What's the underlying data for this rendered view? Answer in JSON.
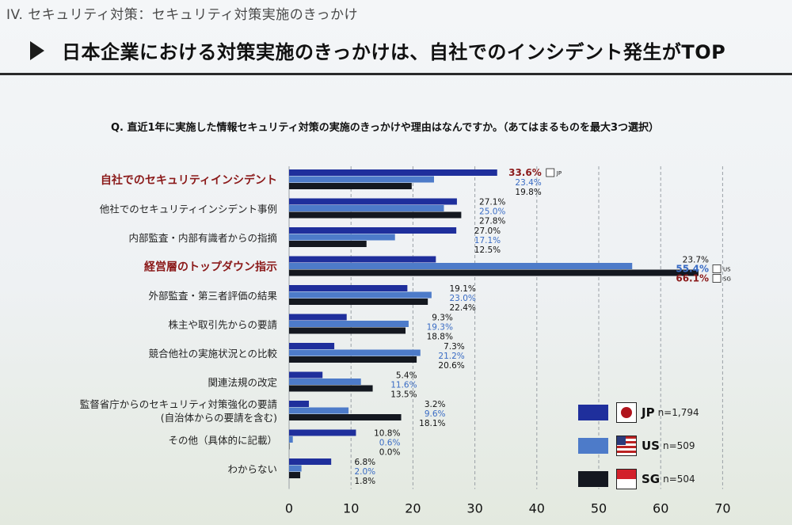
{
  "section_title": "IV. セキュリティ対策：セキュリティ対策実施のきっかけ",
  "headline": "日本企業における対策実施のきっかけは、自社でのインシデント発生がTOP",
  "question": "Q. 直近1年に実施した情報セキュリティ対策の実施のきっかけや理由はなんですか。（あてはまるものを最大3つ選択）",
  "legend": [
    {
      "code": "JP",
      "n": "n=1,794",
      "color": "#1f2f9c",
      "icon": "japan-flag-icon"
    },
    {
      "code": "US",
      "n": "n=509",
      "color": "#4d7bc9",
      "icon": "us-flag-icon"
    },
    {
      "code": "SG",
      "n": "n=504",
      "color": "#141820",
      "icon": "singapore-flag-icon"
    }
  ],
  "chart_data": {
    "type": "bar",
    "orientation": "horizontal",
    "categories": [
      "自社でのセキュリティインシデント",
      "他社でのセキュリティインシデント事例",
      "内部監査・内部有識者からの指摘",
      "経営層のトップダウン指示",
      "外部監査・第三者評価の結果",
      "株主や取引先からの要請",
      "競合他社の実施状況との比較",
      "関連法規の改定",
      "監督省庁からのセキュリティ対策強化の要請|(自治体からの要請を含む)",
      "その他（具体的に記載）",
      "わからない"
    ],
    "highlighted_categories": [
      0,
      3
    ],
    "series": [
      {
        "name": "JP",
        "color": "#1f2f9c",
        "values": [
          33.6,
          27.1,
          27.0,
          23.7,
          19.1,
          9.3,
          7.3,
          5.4,
          3.2,
          10.8,
          6.8
        ]
      },
      {
        "name": "US",
        "color": "#4d7bc9",
        "values": [
          23.4,
          25.0,
          17.1,
          55.4,
          23.0,
          19.3,
          21.2,
          11.6,
          9.6,
          0.6,
          2.0
        ]
      },
      {
        "name": "SG",
        "color": "#141820",
        "values": [
          19.8,
          27.8,
          12.5,
          66.1,
          22.4,
          18.8,
          20.6,
          13.5,
          18.1,
          0.0,
          1.8
        ]
      }
    ],
    "value_labels": [
      [
        "33.6%",
        "23.4%",
        "19.8%"
      ],
      [
        "27.1%",
        "25.0%",
        "27.8%"
      ],
      [
        "27.0%",
        "17.1%",
        "12.5%"
      ],
      [
        "23.7%",
        "55.4%",
        "66.1%"
      ],
      [
        "19.1%",
        "23.0%",
        "22.4%"
      ],
      [
        "9.3%",
        "19.3%",
        "18.8%"
      ],
      [
        "7.3%",
        "21.2%",
        "20.6%"
      ],
      [
        "5.4%",
        "11.6%",
        "13.5%"
      ],
      [
        "3.2%",
        "9.6%",
        "18.1%"
      ],
      [
        "10.8%",
        "0.6%",
        "0.0%"
      ],
      [
        "6.8%",
        "2.0%",
        "1.8%"
      ]
    ],
    "label_markers": [
      {
        "category": 0,
        "series": 0,
        "text": "JP"
      },
      {
        "category": 3,
        "series": 1,
        "text": "US"
      },
      {
        "category": 3,
        "series": 2,
        "text": "SG"
      }
    ],
    "x_ticks": [
      0,
      10,
      20,
      30,
      40,
      50,
      60,
      70
    ],
    "xlim": [
      0,
      70
    ],
    "grid": "vertical dashed"
  }
}
